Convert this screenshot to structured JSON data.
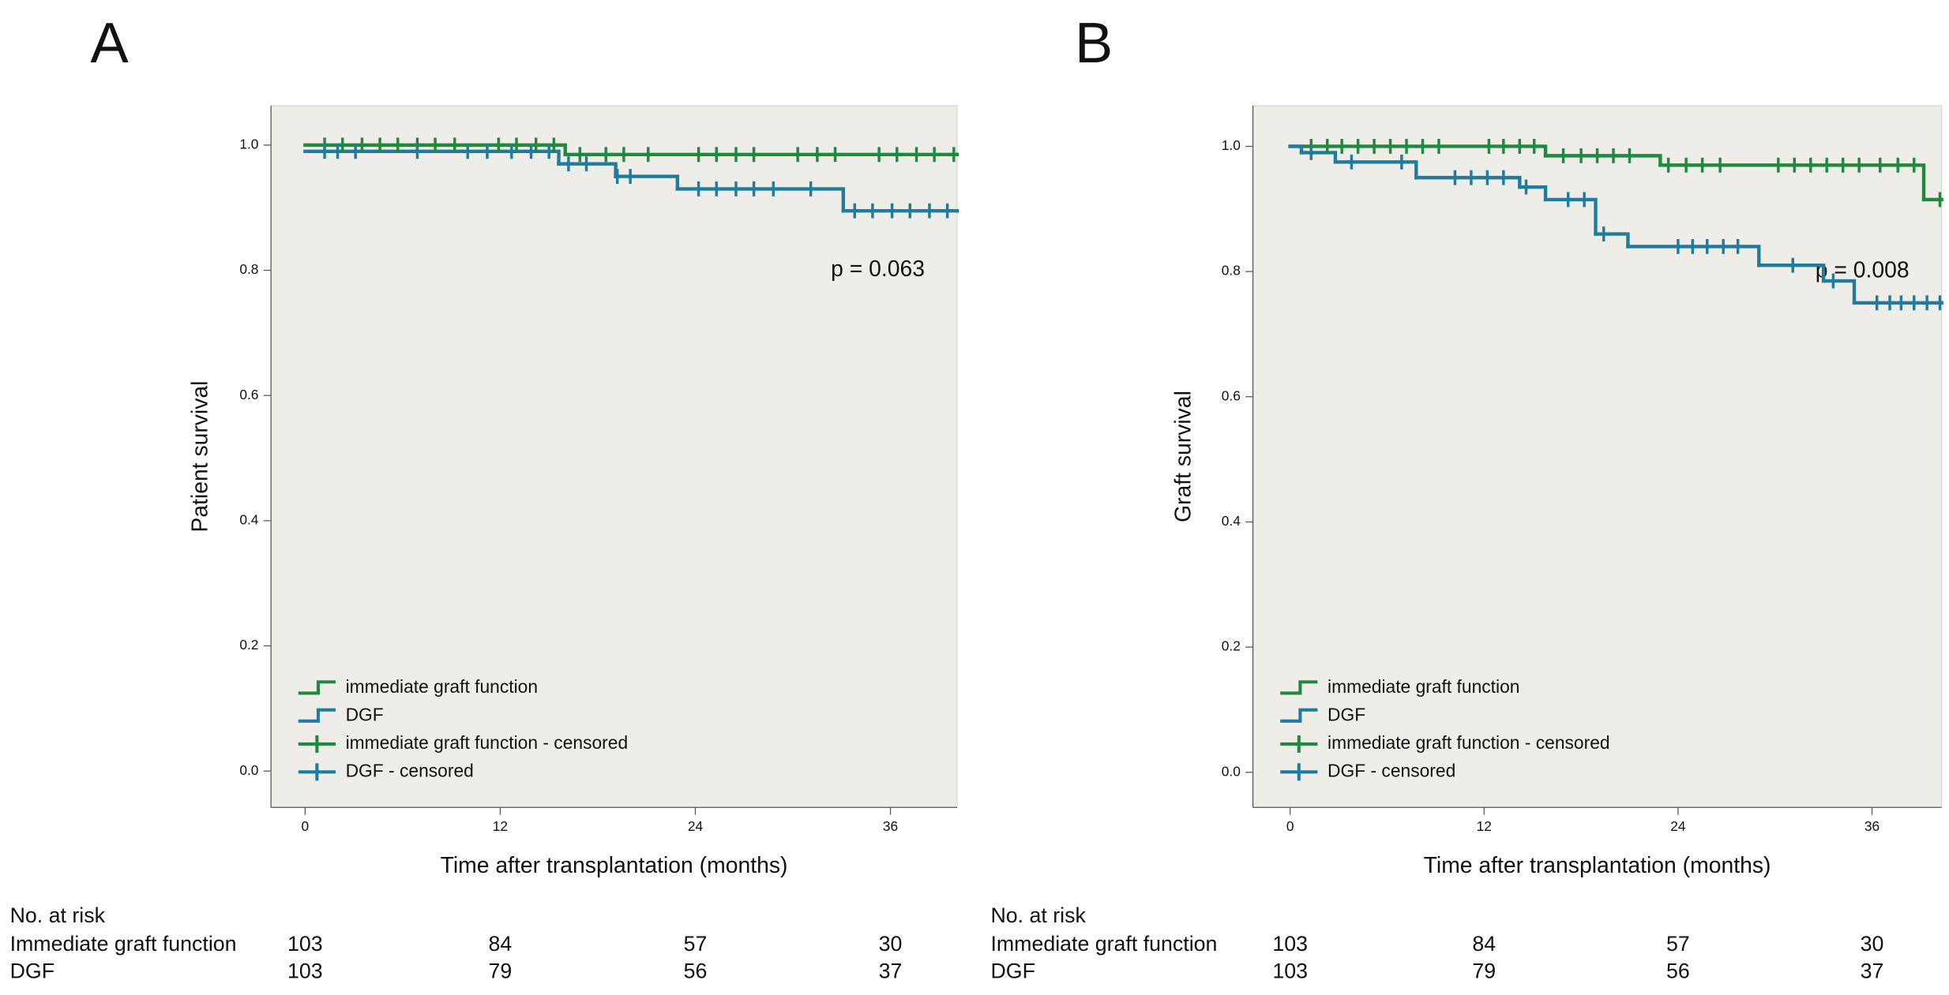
{
  "chart_data": [
    {
      "type": "line",
      "panel_label": "A",
      "xlabel": "Time after transplantation (months)",
      "ylabel": "Patient survival",
      "annotation": "p = 0.063",
      "xlim": [
        -2.1,
        40.1
      ],
      "ylim": [
        -0.058,
        1.063
      ],
      "xticks": [
        0,
        12,
        24,
        36
      ],
      "yticks": [
        {
          "value": 0,
          "label": "0.0"
        },
        {
          "value": 0.2,
          "label": "0.2"
        },
        {
          "value": 0.4,
          "label": "0.4"
        },
        {
          "value": 0.6,
          "label": "0.6"
        },
        {
          "value": 0.8,
          "label": "0.8"
        },
        {
          "value": 1,
          "label": "1.0"
        }
      ],
      "series": [
        {
          "name": "immediate graft function",
          "kind": "step",
          "color": "#1f8a3e",
          "x": [
            0,
            16.0,
            40.1
          ],
          "values": [
            1.0,
            0.985,
            0.985
          ]
        },
        {
          "name": "DGF",
          "kind": "step",
          "color": "#1f7c9e",
          "x": [
            0,
            15.6,
            19.1,
            22.9,
            33.1,
            40.1
          ],
          "values": [
            0.99,
            0.97,
            0.95,
            0.93,
            0.895,
            0.895
          ]
        },
        {
          "name": "immediate graft function - censored",
          "kind": "censored",
          "color": "#1f8a3e",
          "x": [
            1.2,
            2.3,
            3.5,
            4.6,
            5.7,
            6.9,
            8.0,
            9.2,
            11.9,
            13.0,
            14.2,
            15.3,
            16.9,
            18.5,
            19.6,
            21.1,
            24.2,
            25.3,
            26.5,
            27.6,
            30.3,
            31.5,
            32.6,
            35.3,
            36.4,
            37.6,
            38.7,
            39.9
          ],
          "values": [
            1.0,
            1.0,
            1.0,
            1.0,
            1.0,
            1.0,
            1.0,
            1.0,
            1.0,
            1.0,
            1.0,
            1.0,
            0.985,
            0.985,
            0.985,
            0.985,
            0.985,
            0.985,
            0.985,
            0.985,
            0.985,
            0.985,
            0.985,
            0.985,
            0.985,
            0.985,
            0.985,
            0.985
          ]
        },
        {
          "name": "DGF - censored",
          "kind": "censored",
          "color": "#1f7c9e",
          "x": [
            1.2,
            2.0,
            3.1,
            6.9,
            10.0,
            11.2,
            12.7,
            13.9,
            15.0,
            16.2,
            17.3,
            19.2,
            20.0,
            24.2,
            25.3,
            26.5,
            27.6,
            28.8,
            31.1,
            33.8,
            34.9,
            36.1,
            37.2,
            38.4,
            39.5
          ],
          "values": [
            0.99,
            0.99,
            0.99,
            0.99,
            0.99,
            0.99,
            0.99,
            0.99,
            0.99,
            0.97,
            0.97,
            0.95,
            0.95,
            0.93,
            0.93,
            0.93,
            0.93,
            0.93,
            0.93,
            0.895,
            0.895,
            0.895,
            0.895,
            0.895,
            0.895
          ]
        }
      ],
      "risk_table": {
        "title": "No. at risk",
        "rows": [
          {
            "label": "Immediate graft function",
            "values": [
              103,
              84,
              57,
              30
            ]
          },
          {
            "label": "DGF",
            "values": [
              103,
              79,
              56,
              37
            ]
          }
        ]
      }
    },
    {
      "type": "line",
      "panel_label": "B",
      "xlabel": "Time after transplantation (months)",
      "ylabel": "Graft survival",
      "annotation": "p = 0.008",
      "xlim": [
        -2.3,
        40.3
      ],
      "ylim": [
        -0.056,
        1.065
      ],
      "xticks": [
        0,
        12,
        24,
        36
      ],
      "yticks": [
        {
          "value": 0,
          "label": "0.0"
        },
        {
          "value": 0.2,
          "label": "0.2"
        },
        {
          "value": 0.4,
          "label": "0.4"
        },
        {
          "value": 0.6,
          "label": "0.6"
        },
        {
          "value": 0.8,
          "label": "0.8"
        },
        {
          "value": 1,
          "label": "1.0"
        }
      ],
      "series": [
        {
          "name": "immediate graft function",
          "kind": "step",
          "color": "#1f8a3e",
          "x": [
            0,
            15.8,
            22.9,
            39.2,
            40.3
          ],
          "values": [
            1.0,
            0.985,
            0.97,
            0.915,
            0.915
          ]
        },
        {
          "name": "DGF",
          "kind": "step",
          "color": "#1f7c9e",
          "x": [
            0,
            0.7,
            2.8,
            7.8,
            14.2,
            15.8,
            18.9,
            20.9,
            29.0,
            33.0,
            34.9,
            40.3
          ],
          "values": [
            1.0,
            0.99,
            0.975,
            0.95,
            0.935,
            0.915,
            0.86,
            0.84,
            0.81,
            0.785,
            0.75,
            0.75
          ]
        },
        {
          "name": "immediate graft function - censored",
          "kind": "censored",
          "color": "#1f8a3e",
          "x": [
            1.3,
            2.3,
            3.2,
            4.2,
            5.2,
            6.2,
            7.2,
            8.2,
            9.2,
            12.3,
            13.2,
            14.2,
            15.1,
            16.9,
            18.0,
            19.0,
            20.0,
            21.0,
            23.4,
            24.5,
            25.5,
            26.6,
            30.2,
            31.2,
            32.2,
            33.2,
            34.2,
            35.2,
            36.5,
            37.6,
            38.6,
            40.2
          ],
          "values": [
            1.0,
            1.0,
            1.0,
            1.0,
            1.0,
            1.0,
            1.0,
            1.0,
            1.0,
            1.0,
            1.0,
            1.0,
            1.0,
            0.985,
            0.985,
            0.985,
            0.985,
            0.985,
            0.97,
            0.97,
            0.97,
            0.97,
            0.97,
            0.97,
            0.97,
            0.97,
            0.97,
            0.97,
            0.97,
            0.97,
            0.97,
            0.915
          ]
        },
        {
          "name": "DGF - censored",
          "kind": "censored",
          "color": "#1f7c9e",
          "x": [
            1.3,
            3.8,
            6.9,
            10.2,
            11.2,
            12.2,
            13.2,
            14.6,
            17.2,
            18.2,
            19.4,
            24.0,
            24.9,
            25.8,
            26.8,
            27.7,
            31.1,
            33.6,
            36.3,
            37.1,
            37.8,
            38.6,
            39.4,
            40.2
          ],
          "values": [
            0.99,
            0.975,
            0.975,
            0.95,
            0.95,
            0.95,
            0.95,
            0.935,
            0.915,
            0.915,
            0.86,
            0.84,
            0.84,
            0.84,
            0.84,
            0.84,
            0.81,
            0.785,
            0.75,
            0.75,
            0.75,
            0.75,
            0.75,
            0.75
          ]
        }
      ],
      "risk_table": {
        "title": "No. at risk",
        "rows": [
          {
            "label": "Immediate graft function",
            "values": [
              103,
              84,
              57,
              30
            ]
          },
          {
            "label": "DGF",
            "values": [
              103,
              79,
              56,
              37
            ]
          }
        ]
      }
    }
  ]
}
